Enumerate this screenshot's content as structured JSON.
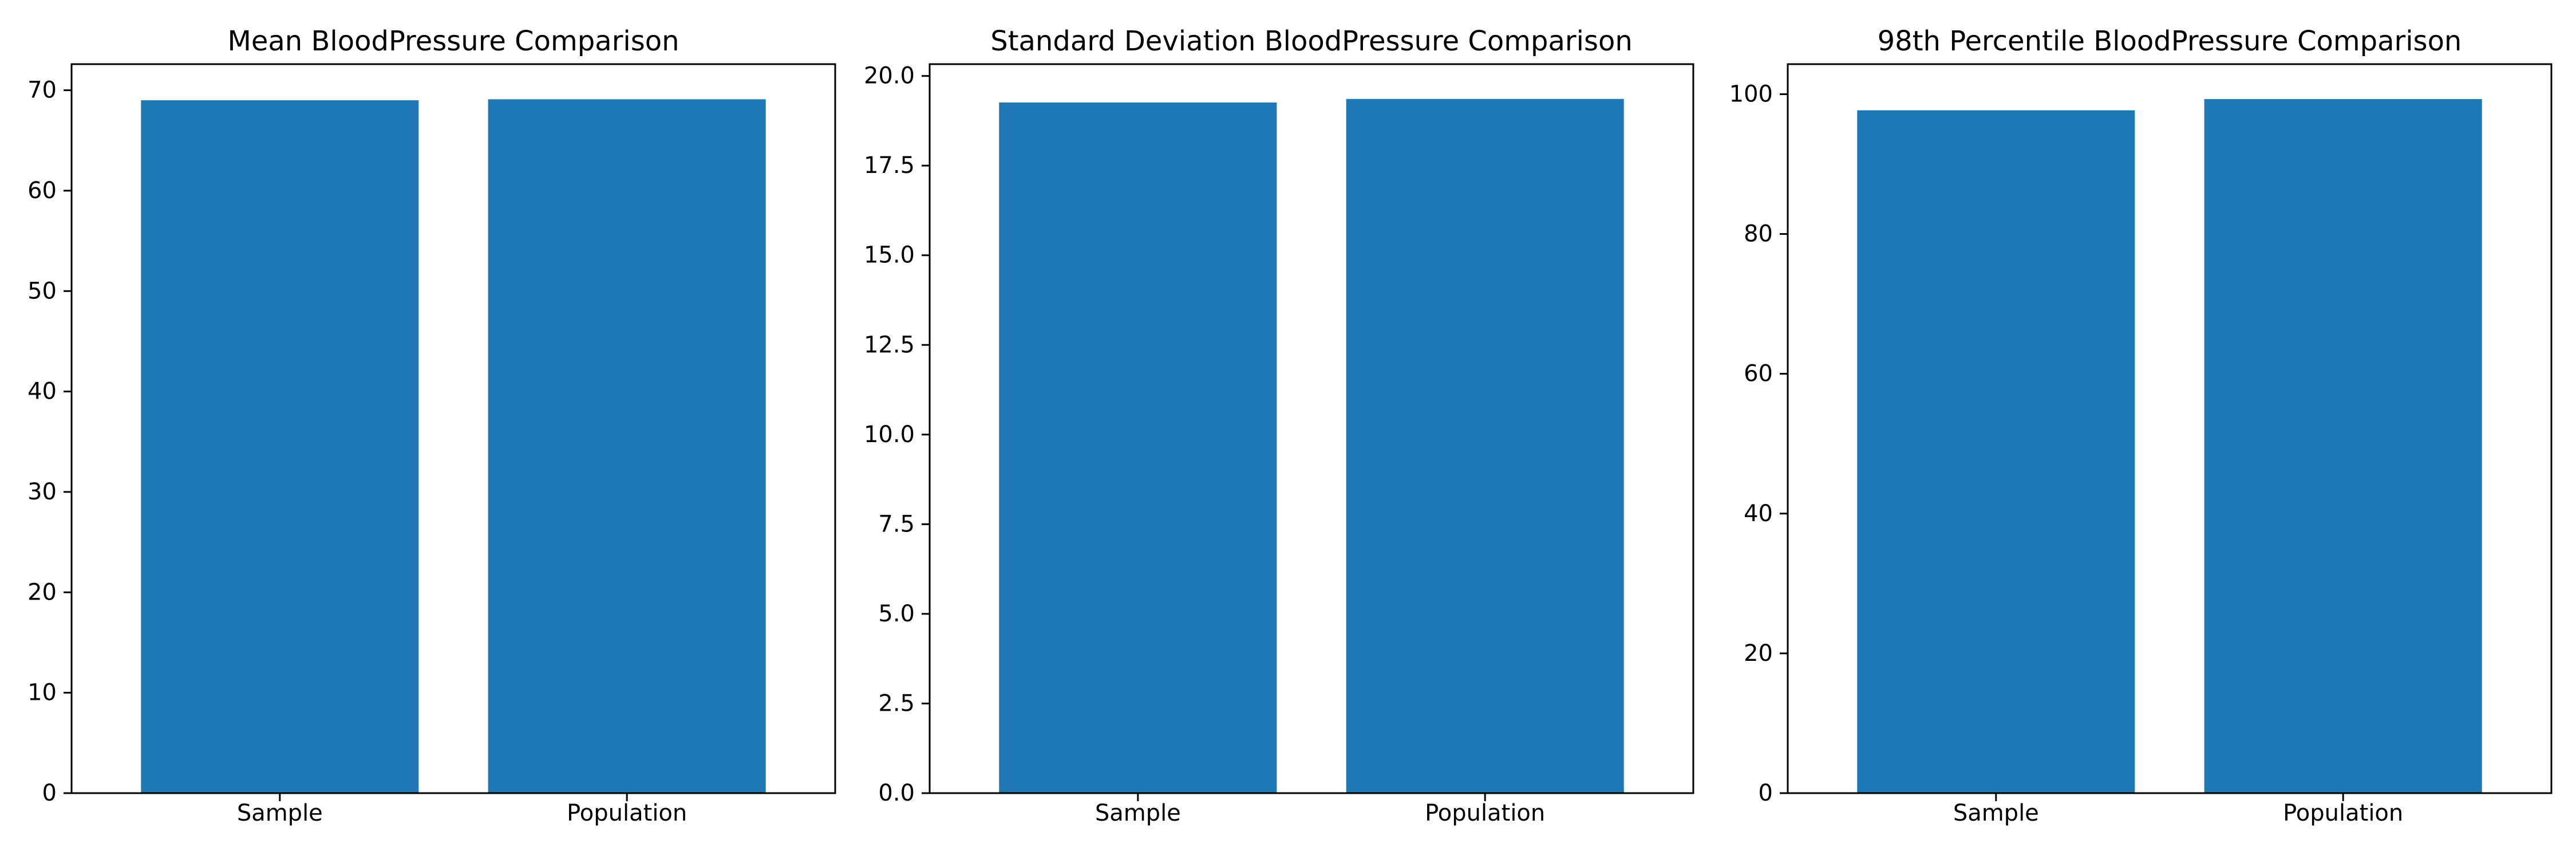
{
  "chart_data": [
    {
      "type": "bar",
      "title": "Mean BloodPressure Comparison",
      "xlabel": "",
      "ylabel": "",
      "categories": [
        "Sample",
        "Population"
      ],
      "values": [
        69.0,
        69.1
      ],
      "ylim": [
        0,
        72.6
      ],
      "yticks": [
        0,
        10,
        20,
        30,
        40,
        50,
        60,
        70
      ],
      "ytick_labels": [
        "0",
        "10",
        "20",
        "30",
        "40",
        "50",
        "60",
        "70"
      ],
      "color": "#1f77b4",
      "grid": false
    },
    {
      "type": "bar",
      "title": "Standard Deviation BloodPressure Comparison",
      "xlabel": "",
      "ylabel": "",
      "categories": [
        "Sample",
        "Population"
      ],
      "values": [
        19.26,
        19.36
      ],
      "ylim": [
        0,
        20.33
      ],
      "yticks": [
        0,
        2.5,
        5.0,
        7.5,
        10.0,
        12.5,
        15.0,
        17.5,
        20.0
      ],
      "ytick_labels": [
        "0.0",
        "2.5",
        "5.0",
        "7.5",
        "10.0",
        "12.5",
        "15.0",
        "17.5",
        "20.0"
      ],
      "color": "#1f77b4",
      "grid": false
    },
    {
      "type": "bar",
      "title": "98th Percentile BloodPressure Comparison",
      "xlabel": "",
      "ylabel": "",
      "categories": [
        "Sample",
        "Population"
      ],
      "values": [
        97.7,
        99.3
      ],
      "ylim": [
        0,
        104.3
      ],
      "yticks": [
        0,
        20,
        40,
        60,
        80,
        100
      ],
      "ytick_labels": [
        "0",
        "20",
        "40",
        "60",
        "80",
        "100"
      ],
      "color": "#1f77b4",
      "grid": false
    }
  ]
}
